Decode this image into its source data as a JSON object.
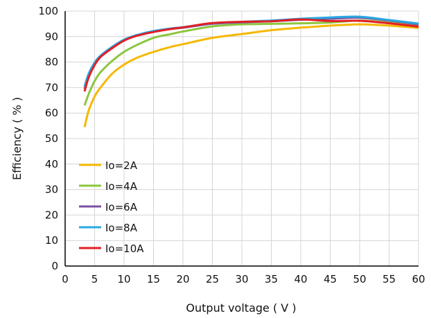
{
  "chart_data": {
    "type": "line",
    "xlabel": "Output voltage ( V )",
    "ylabel": "Efficiency ( % )",
    "xlim": [
      0,
      60
    ],
    "ylim": [
      0,
      100
    ],
    "xticks": [
      0,
      5,
      10,
      15,
      20,
      25,
      30,
      35,
      40,
      45,
      50,
      55,
      60
    ],
    "yticks": [
      0,
      10,
      20,
      30,
      40,
      50,
      60,
      70,
      80,
      90,
      100
    ],
    "grid": true,
    "legend_position": "bottom-left",
    "series": [
      {
        "name": "Io=2A",
        "color": "#F5B800",
        "points": [
          [
            3.3,
            54.5
          ],
          [
            4,
            61
          ],
          [
            5,
            66.5
          ],
          [
            6,
            70
          ],
          [
            8,
            75.5
          ],
          [
            10,
            79
          ],
          [
            12,
            81.5
          ],
          [
            15,
            84
          ],
          [
            18,
            86
          ],
          [
            20,
            87
          ],
          [
            25,
            89.5
          ],
          [
            30,
            91
          ],
          [
            35,
            92.5
          ],
          [
            40,
            93.5
          ],
          [
            45,
            94.3
          ],
          [
            50,
            94.8
          ],
          [
            55,
            94.3
          ],
          [
            60,
            93.4
          ]
        ]
      },
      {
        "name": "Io=4A",
        "color": "#8CC63F",
        "points": [
          [
            3.3,
            63
          ],
          [
            4,
            67.5
          ],
          [
            5,
            72.5
          ],
          [
            6,
            76
          ],
          [
            8,
            80.5
          ],
          [
            10,
            84
          ],
          [
            12,
            86.5
          ],
          [
            15,
            89.5
          ],
          [
            18,
            91
          ],
          [
            20,
            92
          ],
          [
            25,
            94
          ],
          [
            30,
            94.8
          ],
          [
            35,
            95
          ],
          [
            40,
            95.2
          ],
          [
            45,
            95.5
          ],
          [
            50,
            96.3
          ],
          [
            55,
            95.5
          ],
          [
            60,
            94.2
          ]
        ]
      },
      {
        "name": "Io=6A",
        "color": "#7B4FA0",
        "points": [
          [
            3.3,
            69.5
          ],
          [
            4,
            74.5
          ],
          [
            5,
            79
          ],
          [
            6,
            82
          ],
          [
            8,
            85.5
          ],
          [
            10,
            88.5
          ],
          [
            12,
            90.3
          ],
          [
            15,
            92
          ],
          [
            18,
            93
          ],
          [
            20,
            93.5
          ],
          [
            25,
            95
          ],
          [
            30,
            95.6
          ],
          [
            35,
            96
          ],
          [
            40,
            96.6
          ],
          [
            45,
            97
          ],
          [
            50,
            97.4
          ],
          [
            55,
            96.3
          ],
          [
            60,
            94.8
          ]
        ]
      },
      {
        "name": "Io=8A",
        "color": "#29A8E0",
        "points": [
          [
            3.3,
            70.5
          ],
          [
            4,
            75.5
          ],
          [
            5,
            79.8
          ],
          [
            6,
            82.5
          ],
          [
            8,
            86
          ],
          [
            10,
            88.8
          ],
          [
            12,
            90.5
          ],
          [
            15,
            92.2
          ],
          [
            18,
            93.2
          ],
          [
            20,
            93.7
          ],
          [
            25,
            95.2
          ],
          [
            30,
            95.8
          ],
          [
            35,
            96.3
          ],
          [
            40,
            97
          ],
          [
            45,
            97.5
          ],
          [
            50,
            97.8
          ],
          [
            55,
            96.5
          ],
          [
            60,
            95.1
          ]
        ]
      },
      {
        "name": "Io=10A",
        "color": "#E31E24",
        "points": [
          [
            3.3,
            68.5
          ],
          [
            4,
            74
          ],
          [
            5,
            78.8
          ],
          [
            6,
            82
          ],
          [
            8,
            85.5
          ],
          [
            10,
            88.4
          ],
          [
            12,
            90.2
          ],
          [
            15,
            91.8
          ],
          [
            18,
            93
          ],
          [
            20,
            93.6
          ],
          [
            25,
            95.3
          ],
          [
            30,
            95.8
          ],
          [
            35,
            96
          ],
          [
            40,
            96.7
          ],
          [
            45,
            96.1
          ],
          [
            50,
            96.2
          ],
          [
            55,
            95.2
          ],
          [
            60,
            93.9
          ]
        ]
      }
    ]
  }
}
